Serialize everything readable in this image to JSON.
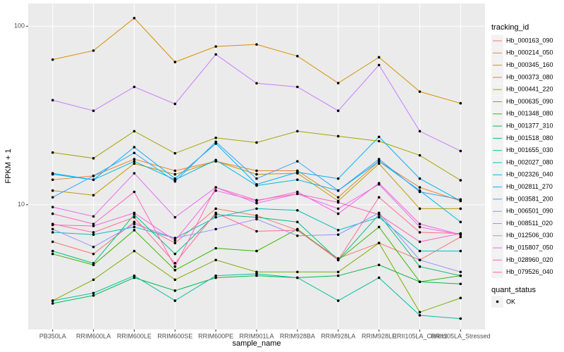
{
  "chart_data": {
    "type": "line",
    "x_label": "sample_name",
    "y_label": "FPKM + 1",
    "categories": [
      "PB350LA",
      "RRIM600LA",
      "RRIM600LE",
      "RRIM600SE",
      "RRIM600PE",
      "RRIM901LA",
      "RRIM928BA",
      "RRIM928LA",
      "RRIM928LE",
      "RRII105LA_Control",
      "RRII105LA_Stressed"
    ],
    "log_y": true,
    "ylim": [
      2,
      134
    ],
    "yticks": [
      10,
      100
    ],
    "grid": true,
    "legend_title": "tracking_id",
    "shape_legend": {
      "title": "quant_status",
      "labels": [
        "OK"
      ]
    },
    "point_color": "#000000",
    "series": [
      {
        "name": "Hb_000163_090",
        "color": "#F8766D",
        "values": [
          6.2,
          5.3,
          8.0,
          6.1,
          9.5,
          8.7,
          7.2,
          5.0,
          6.1,
          4.9,
          6.6
        ]
      },
      {
        "name": "Hb_000214_050",
        "color": "#EA8331",
        "values": [
          13.8,
          14.5,
          18,
          15.5,
          17.5,
          15.5,
          15.5,
          11,
          17.5,
          12.5,
          10.5
        ]
      },
      {
        "name": "Hb_000345_160",
        "color": "#D89000",
        "values": [
          65,
          73,
          111,
          63,
          77,
          79,
          68,
          48,
          67,
          43,
          37
        ]
      },
      {
        "name": "Hb_000373_080",
        "color": "#C09B00",
        "values": [
          12,
          11.3,
          17,
          14.8,
          17.5,
          14.8,
          15,
          10.5,
          17,
          9.5,
          9.5
        ]
      },
      {
        "name": "Hb_000441_220",
        "color": "#A3A500",
        "values": [
          19.6,
          18.2,
          25.8,
          19.4,
          23.7,
          22.3,
          25.8,
          24.2,
          22.7,
          18.9,
          13.7
        ]
      },
      {
        "name": "Hb_000635_090",
        "color": "#7CAE00",
        "values": [
          2.9,
          3.8,
          5.5,
          3.8,
          4.9,
          4.2,
          4.2,
          4.2,
          6.1,
          2.5,
          3.0
        ]
      },
      {
        "name": "Hb_001348_080",
        "color": "#39B600",
        "values": [
          5.3,
          4.6,
          7.2,
          4.3,
          5.7,
          5.5,
          7.3,
          4.9,
          7.5,
          3.7,
          4
        ]
      },
      {
        "name": "Hb_001377_310",
        "color": "#00BB4E",
        "values": [
          2.8,
          3.1,
          3.9,
          3.3,
          3.9,
          4,
          3.9,
          4.0,
          4.6,
          3.7,
          3.6
        ]
      },
      {
        "name": "Hb_001518_080",
        "color": "#00BF7D",
        "values": [
          5.5,
          4.7,
          8.8,
          5.3,
          8.8,
          8.5,
          8,
          4.9,
          8.8,
          4.5,
          4
        ]
      },
      {
        "name": "Hb_001655_030",
        "color": "#00C1A3",
        "values": [
          2.9,
          3.2,
          4,
          2.9,
          4,
          4.1,
          3.9,
          2.9,
          3.9,
          2.4,
          2.3
        ]
      },
      {
        "name": "Hb_002027_080",
        "color": "#00BFC4",
        "values": [
          7,
          6.8,
          7.5,
          6.5,
          8.5,
          9.5,
          9.3,
          7.2,
          8.5,
          5.5,
          5.5
        ]
      },
      {
        "name": "Hb_002326_040",
        "color": "#00BAE0",
        "values": [
          14.8,
          13.8,
          17.5,
          13.8,
          17.8,
          12.8,
          13.8,
          12,
          17.5,
          12,
          8
        ]
      },
      {
        "name": "Hb_002811_270",
        "color": "#00B0F6",
        "values": [
          15,
          13.8,
          21,
          14,
          22,
          13,
          15.2,
          14,
          24,
          14,
          10.5
        ]
      },
      {
        "name": "Hb_003581_200",
        "color": "#35A2FF",
        "values": [
          11,
          14.5,
          19.5,
          13.5,
          22.5,
          14,
          17.5,
          12,
          18,
          11.8,
          10.7
        ]
      },
      {
        "name": "Hb_006501_090",
        "color": "#9590FF",
        "values": [
          7.3,
          5.8,
          7.8,
          6.5,
          7.3,
          8.3,
          6.7,
          6.8,
          9.0,
          4.9,
          4.2
        ]
      },
      {
        "name": "Hb_008511_020",
        "color": "#C77CFF",
        "values": [
          38.5,
          33.6,
          45.7,
          36.7,
          69.5,
          47.9,
          45.7,
          33.6,
          60.6,
          25.8,
          20
        ]
      },
      {
        "name": "Hb_012506_030",
        "color": "#E76BF3",
        "values": [
          9.7,
          8.6,
          15,
          8.5,
          12.5,
          10.2,
          11.5,
          9.5,
          13,
          7.5,
          6.8
        ]
      },
      {
        "name": "Hb_015807_050",
        "color": "#FA62DB",
        "values": [
          7.7,
          7.6,
          9.0,
          6.3,
          12,
          10.5,
          11.8,
          8.9,
          13.2,
          7.8,
          6.8
        ]
      },
      {
        "name": "Hb_028960_020",
        "color": "#FF62BC",
        "values": [
          8.9,
          7.8,
          11.8,
          4.5,
          12.5,
          10.6,
          11.5,
          10.3,
          8.8,
          6.2,
          6.9
        ]
      },
      {
        "name": "Hb_079526_040",
        "color": "#FF6C91",
        "values": [
          7.8,
          7.0,
          8.5,
          4.7,
          9,
          7.1,
          7.2,
          4.9,
          11,
          7.0,
          6.9
        ]
      }
    ]
  }
}
